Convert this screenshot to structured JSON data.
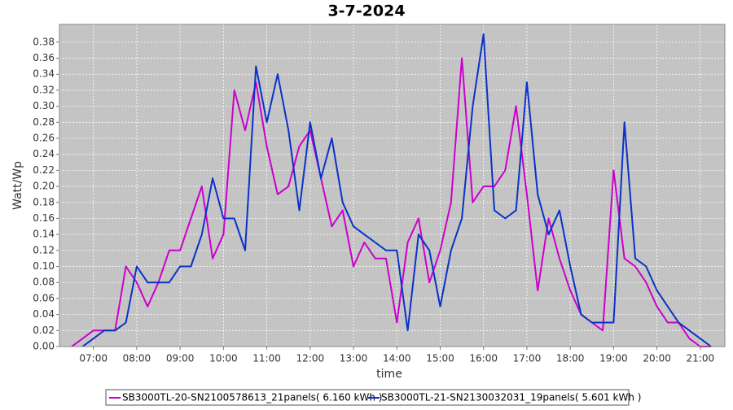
{
  "chart_data": {
    "type": "line",
    "title": "3-7-2024",
    "x_label": "time",
    "y_label": "Watt/Wp",
    "x": [
      "06:30",
      "06:45",
      "07:00",
      "07:15",
      "07:30",
      "07:45",
      "08:00",
      "08:15",
      "08:30",
      "08:45",
      "09:00",
      "09:15",
      "09:30",
      "09:45",
      "10:00",
      "10:15",
      "10:30",
      "10:45",
      "11:00",
      "11:15",
      "11:30",
      "11:45",
      "12:00",
      "12:15",
      "12:30",
      "12:45",
      "13:00",
      "13:15",
      "13:30",
      "13:45",
      "14:00",
      "14:15",
      "14:30",
      "14:45",
      "15:00",
      "15:15",
      "15:30",
      "15:45",
      "16:00",
      "16:15",
      "16:30",
      "16:45",
      "17:00",
      "17:15",
      "17:30",
      "17:45",
      "18:00",
      "18:15",
      "18:30",
      "18:45",
      "19:00",
      "19:15",
      "19:30",
      "19:45",
      "20:00",
      "20:15",
      "20:30",
      "20:45",
      "21:00",
      "21:15"
    ],
    "series": [
      {
        "name": "SB3000TL-20-SN2100578613_21panels( 6.160 kWh )",
        "color": "#cc00cc",
        "values": [
          0,
          0.01,
          0.02,
          0.02,
          0.02,
          0.1,
          0.08,
          0.05,
          0.08,
          0.12,
          0.12,
          0.16,
          0.2,
          0.11,
          0.14,
          0.32,
          0.27,
          0.33,
          0.25,
          0.19,
          0.2,
          0.25,
          0.27,
          0.21,
          0.15,
          0.17,
          0.1,
          0.13,
          0.11,
          0.11,
          0.03,
          0.13,
          0.16,
          0.08,
          0.12,
          0.18,
          0.36,
          0.18,
          0.2,
          0.2,
          0.22,
          0.3,
          0.19,
          0.07,
          0.16,
          0.11,
          0.07,
          0.04,
          0.03,
          0.02,
          0.22,
          0.11,
          0.1,
          0.08,
          0.05,
          0.03,
          0.03,
          0.01,
          0,
          0
        ]
      },
      {
        "name": "SB3000TL-21-SN2130032031_19panels( 5.601 kWh )",
        "color": "#0a32c8",
        "values": [
          null,
          0,
          0.01,
          0.02,
          0.02,
          0.03,
          0.1,
          0.08,
          0.08,
          0.08,
          0.1,
          0.1,
          0.14,
          0.21,
          0.16,
          0.16,
          0.12,
          0.35,
          0.28,
          0.34,
          0.27,
          0.17,
          0.28,
          0.21,
          0.26,
          0.18,
          0.15,
          0.14,
          0.13,
          0.12,
          0.12,
          0.02,
          0.14,
          0.12,
          0.05,
          0.12,
          0.16,
          0.3,
          0.39,
          0.17,
          0.16,
          0.17,
          0.33,
          0.19,
          0.14,
          0.17,
          0.1,
          0.04,
          0.03,
          0.03,
          0.03,
          0.28,
          0.11,
          0.1,
          0.07,
          0.05,
          0.03,
          0.02,
          0.01,
          0
        ]
      }
    ],
    "xlim": [
      "06:13",
      "21:34"
    ],
    "xticks": [
      "07:00",
      "08:00",
      "09:00",
      "10:00",
      "11:00",
      "12:00",
      "13:00",
      "14:00",
      "15:00",
      "16:00",
      "17:00",
      "18:00",
      "19:00",
      "20:00",
      "21:00"
    ],
    "ylim": [
      0,
      0.4022
    ],
    "yticks": [
      {
        "value": 0,
        "label": "0.00"
      },
      {
        "value": 0.02,
        "label": "0.02"
      },
      {
        "value": 0.04,
        "label": "0.04"
      },
      {
        "value": 0.06,
        "label": "0.06"
      },
      {
        "value": 0.08,
        "label": "0.08"
      },
      {
        "value": 0.1,
        "label": "0.10"
      },
      {
        "value": 0.12,
        "label": "0.12"
      },
      {
        "value": 0.14,
        "label": "0.14"
      },
      {
        "value": 0.16,
        "label": "0.16"
      },
      {
        "value": 0.18,
        "label": "0.18"
      },
      {
        "value": 0.2,
        "label": "0.20"
      },
      {
        "value": 0.22,
        "label": "0.22"
      },
      {
        "value": 0.24,
        "label": "0.24"
      },
      {
        "value": 0.26,
        "label": "0.26"
      },
      {
        "value": 0.28,
        "label": "0.28"
      },
      {
        "value": 0.3,
        "label": "0.30"
      },
      {
        "value": 0.32,
        "label": "0.32"
      },
      {
        "value": 0.34,
        "label": "0.34"
      },
      {
        "value": 0.36,
        "label": "0.36"
      },
      {
        "value": 0.38,
        "label": "0.38"
      }
    ],
    "grid": true
  }
}
